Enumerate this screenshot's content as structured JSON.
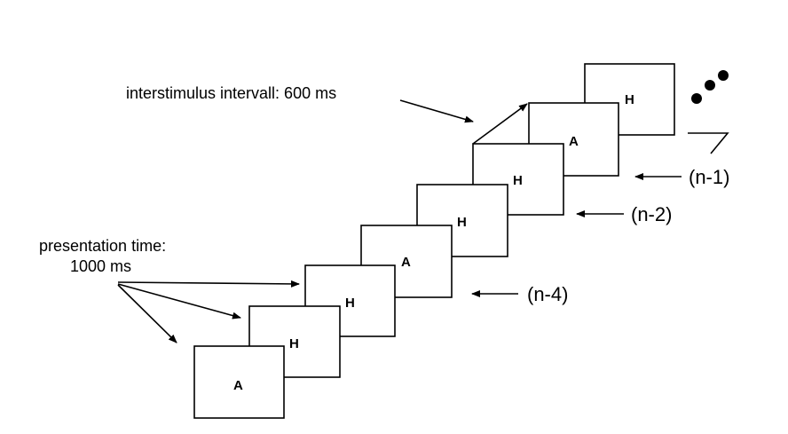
{
  "labels": {
    "isi": "interstimulus intervall: 600 ms",
    "presentation_line1": "presentation time:",
    "presentation_line2": "1000 ms",
    "n1": "(n-1)",
    "n2": "(n-2)",
    "n4": "(n-4)"
  },
  "stimuli": [
    "A",
    "H",
    "H",
    "A",
    "H",
    "H",
    "A",
    "H"
  ]
}
